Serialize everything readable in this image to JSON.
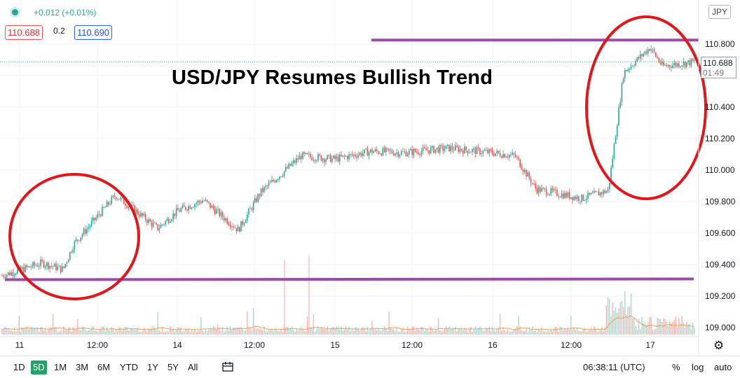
{
  "header": {
    "change": "+0.012 (+0.01%)",
    "sell_price": "110.688",
    "spread": "0.2",
    "buy_price": "110.690",
    "currency": "JPY"
  },
  "annotation": {
    "headline": "USD/JPY Resumes Bullish Trend"
  },
  "price_label": {
    "price": "110.688",
    "countdown": "01:49"
  },
  "toolbar": {
    "timeframes": [
      "1D",
      "5D",
      "1M",
      "3M",
      "6M",
      "YTD",
      "1Y",
      "5Y",
      "All"
    ],
    "active_timeframe": "5D",
    "time": "06:38:11 (UTC)",
    "percent": "%",
    "log": "log",
    "auto": "auto"
  },
  "colors": {
    "up": "#26a69a",
    "down": "#ef5350",
    "support_line": "#9c4ca8",
    "circle": "#e0161a",
    "volume_ma": "#f0a05a"
  },
  "icons": [
    "status-dot-icon",
    "gear-icon",
    "compare-range-icon"
  ],
  "chart_data": {
    "type": "line",
    "title": "USD/JPY Resumes Bullish Trend",
    "x_ticks": [
      "11",
      "12:00",
      "14",
      "12:00",
      "15",
      "12:00",
      "16",
      "12:00",
      "17"
    ],
    "y_ticks": [
      "110.800",
      "110.600",
      "110.400",
      "110.200",
      "110.000",
      "109.800",
      "109.600",
      "109.400",
      "109.200",
      "109.000"
    ],
    "ylim": [
      108.95,
      111.05
    ],
    "x": [
      "11 00:00",
      "11 06:00",
      "11 09:00",
      "11 12:00",
      "11 15:00",
      "11 18:00",
      "14 00:00",
      "14 06:00",
      "14 12:00",
      "14 15:00",
      "14 18:00",
      "15 00:00",
      "15 06:00",
      "15 12:00",
      "15 18:00",
      "16 00:00",
      "16 06:00",
      "16 09:00",
      "16 12:00",
      "16 15:00",
      "16 18:00",
      "17 00:00",
      "17 03:00",
      "17 06:30"
    ],
    "series": [
      {
        "values": [
          109.33,
          109.41,
          109.37,
          109.53,
          109.84,
          109.63,
          109.74,
          109.81,
          109.62,
          109.86,
          110.09,
          110.07,
          110.12,
          110.11,
          110.14,
          110.11,
          110.09,
          109.88,
          109.82,
          109.87,
          110.62,
          110.78,
          110.66,
          110.69
        ]
      }
    ],
    "support_levels": [
      109.3,
      110.83
    ],
    "current_price": 110.688,
    "volume": "low and flat through Dec 16, spike near Dec 17 open",
    "grid": true,
    "y_axis_side": "right"
  }
}
